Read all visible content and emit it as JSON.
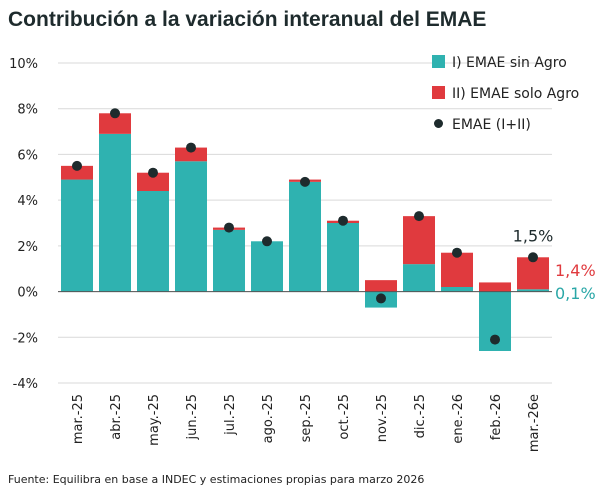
{
  "title": "Contribución a la variación interanual del EMAE",
  "source": "Fuente: Equilibra en base a INDEC y estimaciones propias para marzo 2026",
  "colors": {
    "sin_agro": "#2fb2b0",
    "solo_agro": "#e03a3e",
    "total": "#1e2b2d",
    "grid": "#d9d9d9"
  },
  "chart_data": {
    "type": "bar",
    "stacked": true,
    "categories": [
      "mar.-25",
      "abr.-25",
      "may.-25",
      "jun.-25",
      "jul.-25",
      "ago.-25",
      "sep.-25",
      "oct.-25",
      "nov.-25",
      "dic.-25",
      "ene.-26",
      "feb.-26",
      "mar.-26e"
    ],
    "series": [
      {
        "name": "I) EMAE sin Agro",
        "values": [
          4.9,
          6.9,
          4.4,
          5.7,
          2.7,
          2.2,
          4.8,
          3.0,
          -0.7,
          1.2,
          0.2,
          -2.6,
          0.1
        ]
      },
      {
        "name": "II) EMAE solo Agro",
        "values": [
          0.6,
          0.9,
          0.8,
          0.6,
          0.1,
          0.0,
          0.1,
          0.1,
          0.5,
          2.1,
          1.5,
          0.4,
          1.4
        ]
      },
      {
        "name": "EMAE (I+II)",
        "type": "scatter",
        "values": [
          5.5,
          7.8,
          5.2,
          6.3,
          2.8,
          2.2,
          4.8,
          3.1,
          -0.3,
          3.3,
          1.7,
          -2.1,
          1.5
        ]
      }
    ],
    "yticks": [
      "10%",
      "8%",
      "6%",
      "4%",
      "2%",
      "0%",
      "-2%",
      "-4%"
    ],
    "ylim": [
      -4,
      10
    ],
    "grid": true,
    "legend": "top-right",
    "annotations": [
      {
        "text": "1,5%",
        "series": "total"
      },
      {
        "text": "1,4%",
        "series": "solo_agro"
      },
      {
        "text": "0,1%",
        "series": "sin_agro"
      }
    ]
  }
}
